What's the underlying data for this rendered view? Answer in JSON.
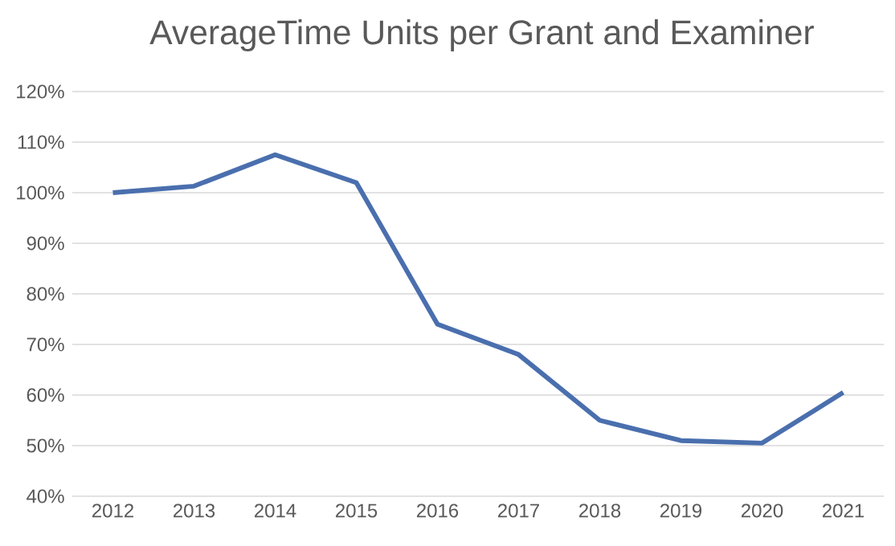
{
  "chart_data": {
    "type": "line",
    "title": "AverageTime Units per Grant and Examiner",
    "categories": [
      "2012",
      "2013",
      "2014",
      "2015",
      "2016",
      "2017",
      "2018",
      "2019",
      "2020",
      "2021"
    ],
    "series": [
      {
        "color": "#4a6fae",
        "values": [
          100,
          101.3,
          107.5,
          102,
          74,
          68,
          55,
          51,
          50.5,
          60.5
        ]
      }
    ],
    "ylim": [
      40,
      120
    ],
    "yticks": [
      {
        "value": 40,
        "label": "40%"
      },
      {
        "value": 50,
        "label": "50%"
      },
      {
        "value": 60,
        "label": "60%"
      },
      {
        "value": 70,
        "label": "70%"
      },
      {
        "value": 80,
        "label": "80%"
      },
      {
        "value": 90,
        "label": "90%"
      },
      {
        "value": 100,
        "label": "100%"
      },
      {
        "value": 110,
        "label": "110%"
      },
      {
        "value": 120,
        "label": "120%"
      }
    ],
    "grid": "y",
    "marker": "none",
    "line_style": "solid"
  }
}
